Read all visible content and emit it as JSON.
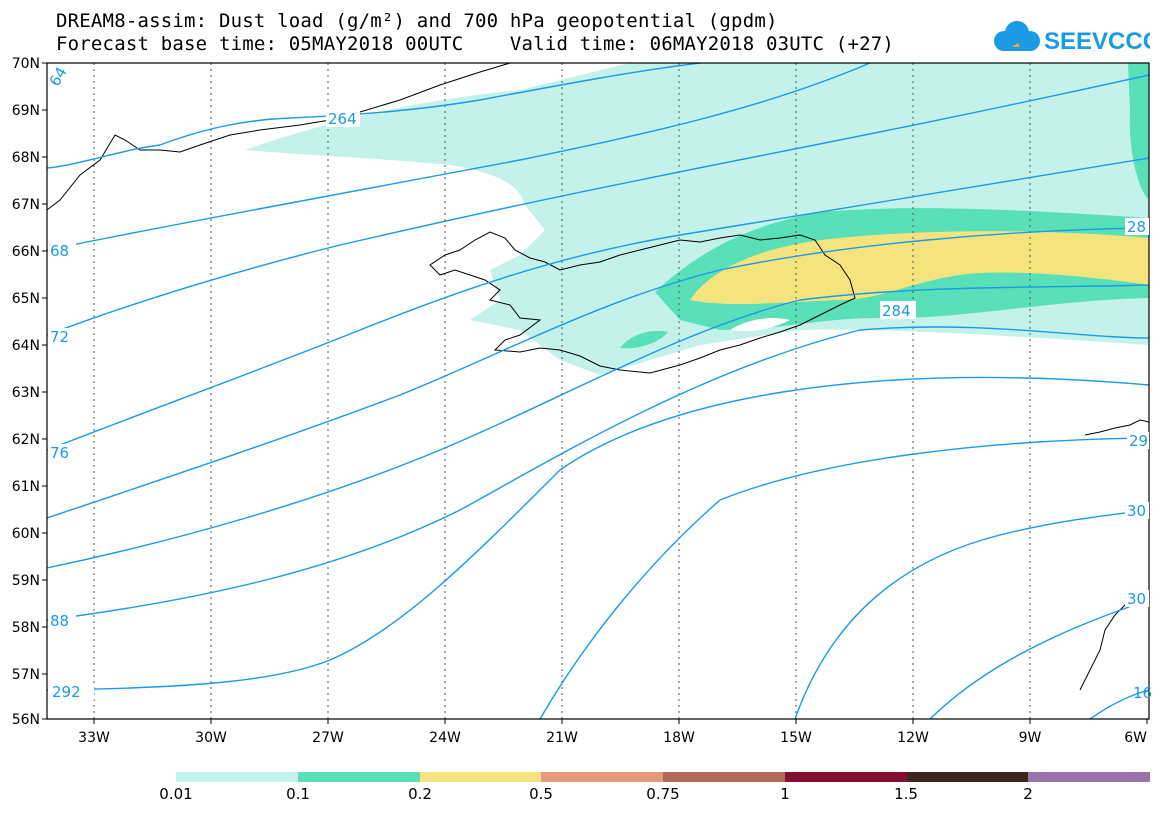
{
  "title_line1": "DREAM8-assim: Dust load (g/m²) and 700 hPa geopotential (gpdm)",
  "title_line2": "Forecast base time: 05MAY2018 00UTC    Valid time: 06MAY2018 03UTC (+27)",
  "logo_text": "SEEVCCC",
  "lat_ticks": [
    "70N",
    "69N",
    "68N",
    "67N",
    "66N",
    "65N",
    "64N",
    "63N",
    "62N",
    "61N",
    "60N",
    "59N",
    "58N",
    "57N",
    "56N"
  ],
  "lon_ticks": [
    "33W",
    "30W",
    "27W",
    "24W",
    "21W",
    "18W",
    "15W",
    "12W",
    "9W",
    "6W"
  ],
  "contour_labels": {
    "c264": "264",
    "c284": "284",
    "c68": "68",
    "c72": "72",
    "c76": "76",
    "c88": "88",
    "c292": "292",
    "c64edge": "64",
    "c28edge": "28",
    "c29edge": "29",
    "c30a": "30",
    "c30b": "30",
    "c16edge": "16"
  },
  "colorbar": {
    "labels": [
      "0.01",
      "0.1",
      "0.2",
      "0.5",
      "0.75",
      "1",
      "1.5",
      "2"
    ],
    "colors": [
      "#c4f1ea",
      "#5ae0b8",
      "#f5e47d",
      "#e29a7a",
      "#b06a5a",
      "#820f32",
      "#3e2620",
      "#9a73a8"
    ]
  },
  "colors": {
    "contour": "#1b9ae6",
    "dust_light": "#c4f1ea",
    "dust_mid": "#5ae0b8",
    "dust_high": "#f5e47d"
  }
}
